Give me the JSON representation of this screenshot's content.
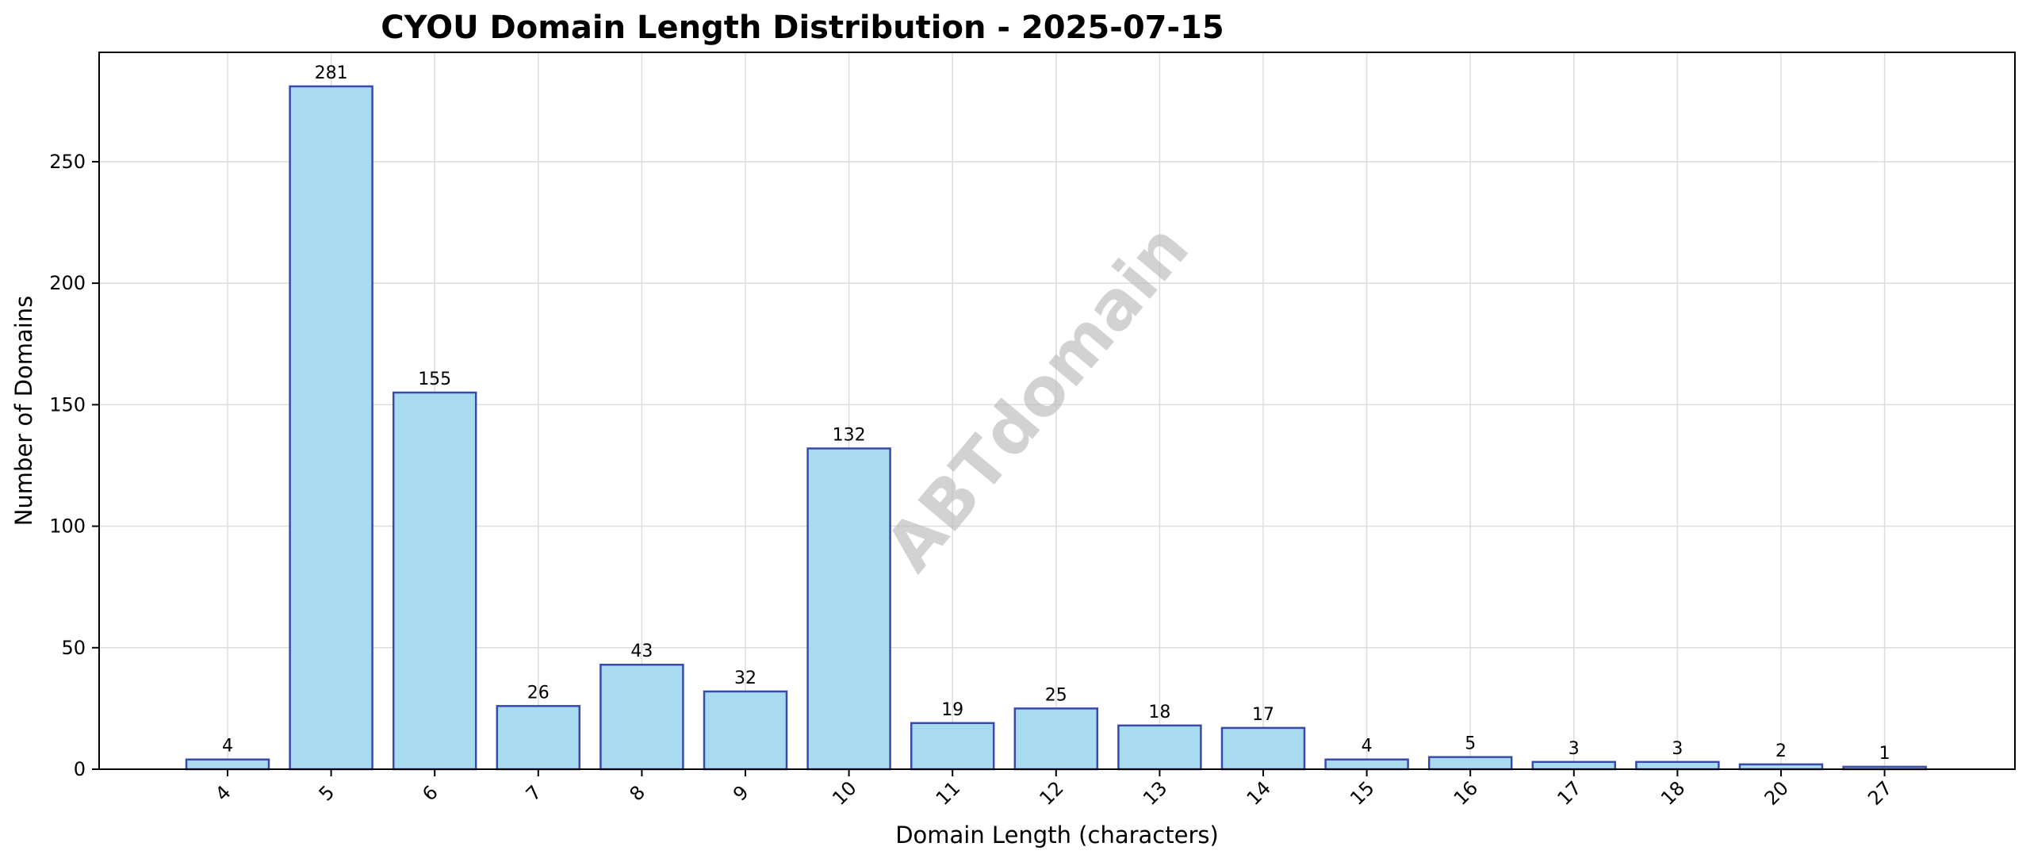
{
  "colors": {
    "bar_fill": "#a8dbef",
    "bar_edge": "#3a4aa8",
    "grid": "#dddddd",
    "watermark": "#bfbfbf"
  },
  "watermark_text": "ABTdomain",
  "chart_data": {
    "type": "bar",
    "title": "CYOU Domain Length Distribution - 2025-07-15",
    "xlabel": "Domain Length (characters)",
    "ylabel": "Number of Domains",
    "categories": [
      "4",
      "5",
      "6",
      "7",
      "8",
      "9",
      "10",
      "11",
      "12",
      "13",
      "14",
      "15",
      "16",
      "17",
      "18",
      "20",
      "27"
    ],
    "values": [
      4,
      281,
      155,
      26,
      43,
      32,
      132,
      19,
      25,
      18,
      17,
      4,
      5,
      3,
      3,
      2,
      1
    ],
    "ylim": [
      0,
      295
    ],
    "yticks": [
      0,
      50,
      100,
      150,
      200,
      250
    ],
    "grid": true,
    "data_labels": true
  }
}
